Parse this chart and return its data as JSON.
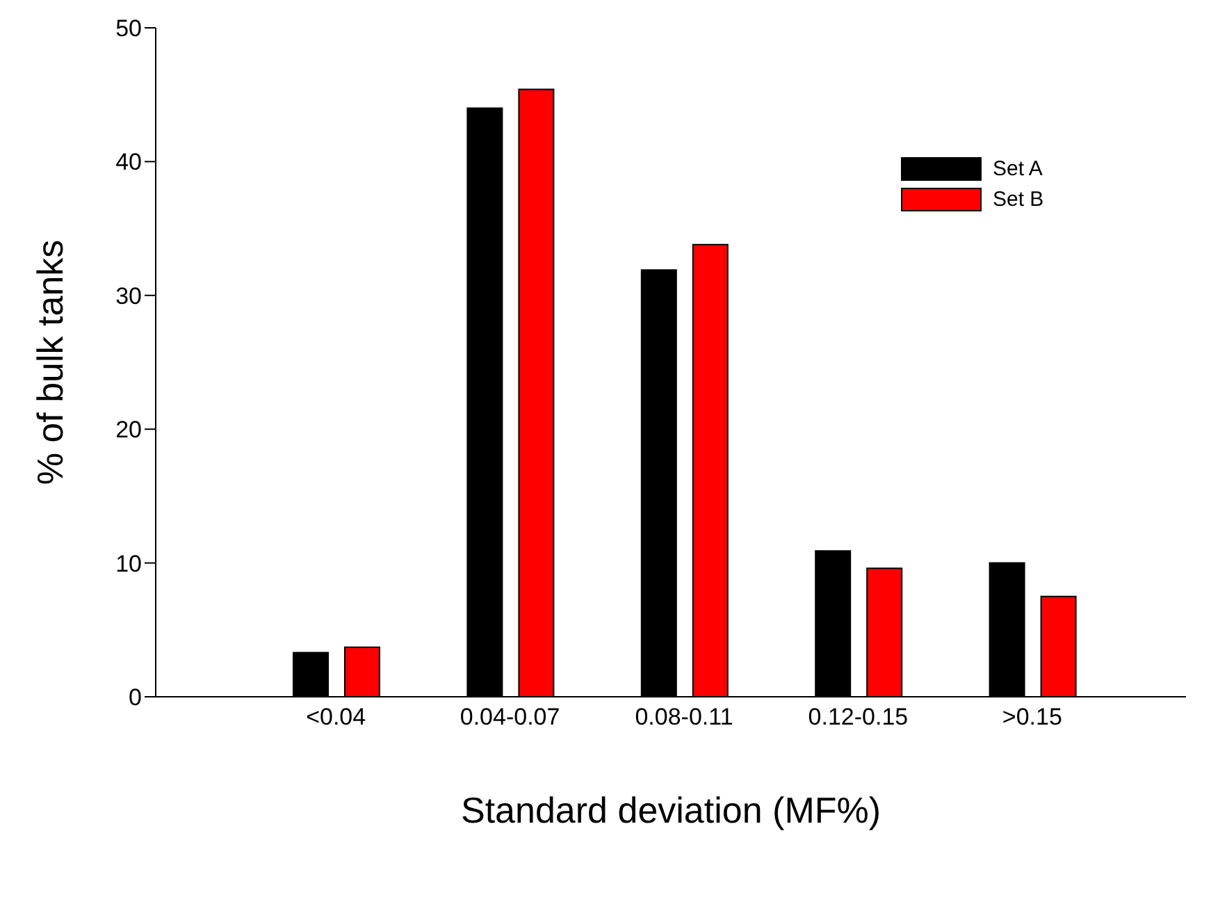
{
  "chart_data": {
    "type": "bar",
    "xlabel": "Standard deviation (MF%)",
    "ylabel": "% of bulk tanks",
    "categories": [
      "<0.04",
      "0.04-0.07",
      "0.08-0.11",
      "0.12-0.15",
      ">0.15"
    ],
    "series": [
      {
        "name": "Set A",
        "color": "#000000",
        "values": [
          3.3,
          44.0,
          31.9,
          10.9,
          10.0
        ]
      },
      {
        "name": "Set B",
        "color": "#ff0000",
        "values": [
          3.7,
          45.4,
          33.8,
          9.6,
          7.5
        ]
      }
    ],
    "ylim": [
      0,
      50
    ],
    "yticks": [
      0,
      10,
      20,
      30,
      40,
      50
    ],
    "grid": false,
    "legend": "top right"
  }
}
